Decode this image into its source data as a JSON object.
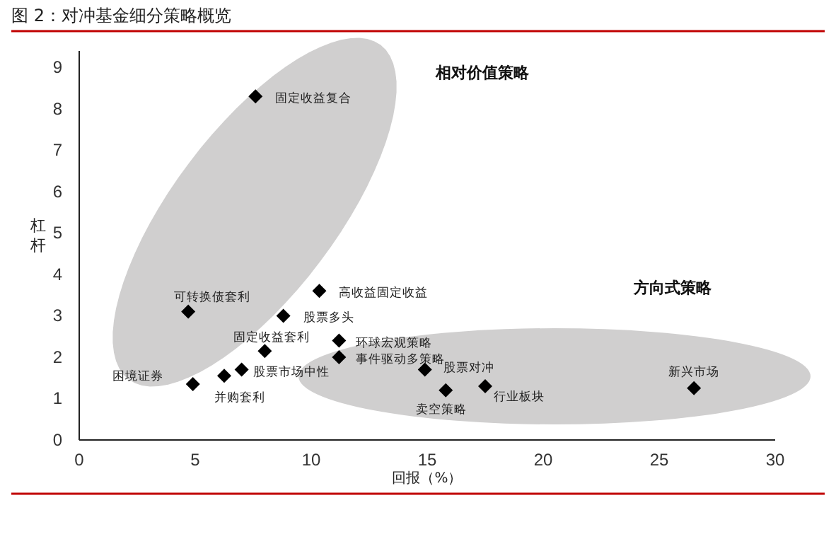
{
  "chart_data": {
    "type": "scatter",
    "title": "图 2：对冲基金细分策略概览",
    "xlabel": "回报（%）",
    "ylabel": "杠杆",
    "xlim": [
      0,
      30
    ],
    "xticks": [
      0,
      5,
      10,
      15,
      20,
      25,
      30
    ],
    "ylim": [
      0,
      9.4
    ],
    "yticks": [
      0,
      1,
      2,
      3,
      4,
      5,
      6,
      7,
      8,
      9
    ],
    "marker": "diamond",
    "grid": false,
    "series": [
      {
        "color": "#000000",
        "x": [
          7.6,
          4.7,
          10.35,
          8.8,
          8.0,
          11.2,
          11.2,
          7.0,
          6.25,
          4.9,
          14.9,
          15.8,
          17.5,
          26.5
        ],
        "values": [
          8.3,
          3.1,
          3.6,
          3.0,
          2.15,
          2.4,
          2.0,
          1.7,
          1.55,
          1.35,
          1.7,
          1.2,
          1.3,
          1.25
        ]
      }
    ],
    "annotations": [
      {
        "text": "固定收益复合",
        "x": 7.6,
        "y": 8.3
      },
      {
        "text": "可转换债套利",
        "x": 4.7,
        "y": 3.1
      },
      {
        "text": "高收益固定收益",
        "x": 10.35,
        "y": 3.6
      },
      {
        "text": "股票多头",
        "x": 8.8,
        "y": 3.0
      },
      {
        "text": "固定收益套利",
        "x": 8.0,
        "y": 2.15
      },
      {
        "text": "环球宏观策略",
        "x": 11.2,
        "y": 2.4
      },
      {
        "text": "事件驱动多策略",
        "x": 11.2,
        "y": 2.0
      },
      {
        "text": "股票市场中性",
        "x": 7.0,
        "y": 1.7
      },
      {
        "text": "并购套利",
        "x": 6.25,
        "y": 1.55
      },
      {
        "text": "困境证券",
        "x": 4.9,
        "y": 1.35
      },
      {
        "text": "股票对冲",
        "x": 14.9,
        "y": 1.7
      },
      {
        "text": "卖空策略",
        "x": 15.8,
        "y": 1.2
      },
      {
        "text": "行业板块",
        "x": 17.5,
        "y": 1.3
      },
      {
        "text": "新兴市场",
        "x": 26.5,
        "y": 1.25
      },
      "相对价值策略",
      "方向式策略"
    ]
  }
}
